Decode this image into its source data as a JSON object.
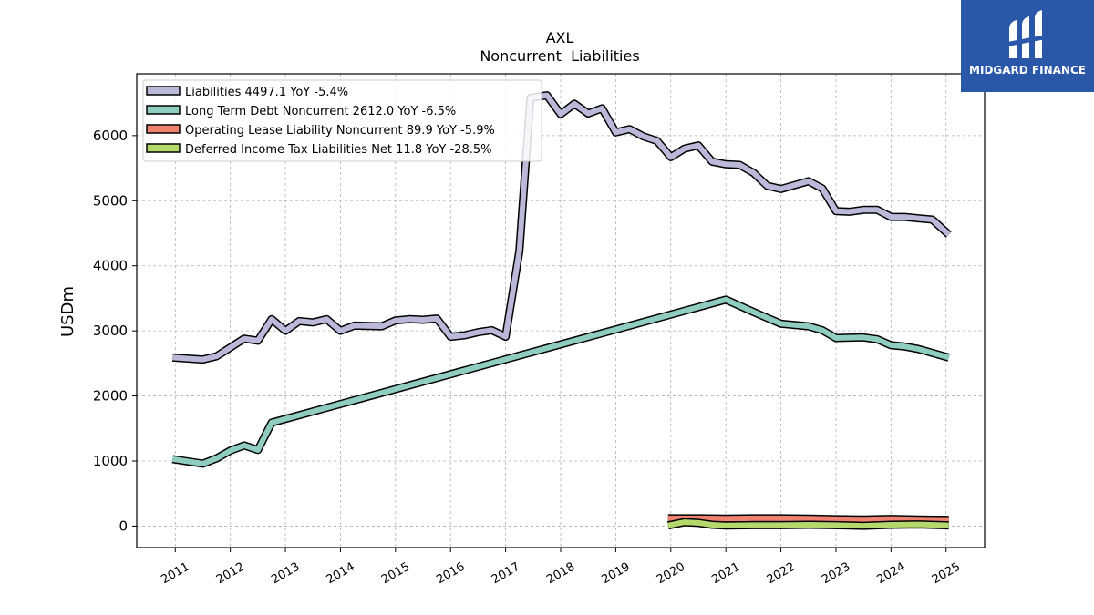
{
  "brand": {
    "name": "MIDGARD FINANCE",
    "color": "#2b57a8",
    "icon": "midgard-logo-icon"
  },
  "chart_data": {
    "type": "line",
    "title": "AXL",
    "subtitle": "Noncurrent  Liabilities",
    "xlabel": "",
    "ylabel": "USDm",
    "xlim": [
      2010.3,
      2025.7
    ],
    "ylim": [
      -330,
      6950
    ],
    "yticks": [
      0,
      1000,
      2000,
      3000,
      4000,
      5000,
      6000
    ],
    "xticks": [
      2011,
      2012,
      2013,
      2014,
      2015,
      2016,
      2017,
      2018,
      2019,
      2020,
      2021,
      2022,
      2023,
      2024,
      2025
    ],
    "xtick_labels": [
      "2011",
      "2012",
      "2013",
      "2014",
      "2015",
      "2016",
      "2017",
      "2018",
      "2019",
      "2020",
      "2021",
      "2022",
      "2023",
      "2024",
      "2025"
    ],
    "grid": true,
    "legend_position": "top-left",
    "series": [
      {
        "name": "Liabilities  4497.1 YoY -5.4%",
        "color": "#bcb8d9",
        "points": [
          [
            2010.95,
            2590
          ],
          [
            2011.5,
            2560
          ],
          [
            2011.75,
            2610
          ],
          [
            2012.25,
            2880
          ],
          [
            2012.5,
            2850
          ],
          [
            2012.75,
            3180
          ],
          [
            2013.0,
            3000
          ],
          [
            2013.25,
            3150
          ],
          [
            2013.5,
            3130
          ],
          [
            2013.75,
            3180
          ],
          [
            2014.0,
            3000
          ],
          [
            2014.25,
            3080
          ],
          [
            2014.75,
            3070
          ],
          [
            2015.0,
            3160
          ],
          [
            2015.25,
            3180
          ],
          [
            2015.5,
            3170
          ],
          [
            2015.75,
            3190
          ],
          [
            2016.0,
            2910
          ],
          [
            2016.25,
            2930
          ],
          [
            2016.5,
            2980
          ],
          [
            2016.75,
            3010
          ],
          [
            2017.0,
            2910
          ],
          [
            2017.25,
            4230
          ],
          [
            2017.45,
            6580
          ],
          [
            2017.75,
            6620
          ],
          [
            2018.0,
            6330
          ],
          [
            2018.25,
            6490
          ],
          [
            2018.5,
            6340
          ],
          [
            2018.75,
            6420
          ],
          [
            2019.0,
            6050
          ],
          [
            2019.25,
            6100
          ],
          [
            2019.5,
            5990
          ],
          [
            2019.75,
            5920
          ],
          [
            2020.0,
            5670
          ],
          [
            2020.25,
            5800
          ],
          [
            2020.5,
            5850
          ],
          [
            2020.75,
            5600
          ],
          [
            2021.0,
            5560
          ],
          [
            2021.25,
            5550
          ],
          [
            2021.5,
            5430
          ],
          [
            2021.75,
            5230
          ],
          [
            2022.0,
            5180
          ],
          [
            2022.5,
            5300
          ],
          [
            2022.75,
            5190
          ],
          [
            2023.0,
            4840
          ],
          [
            2023.25,
            4830
          ],
          [
            2023.5,
            4860
          ],
          [
            2023.75,
            4860
          ],
          [
            2024.0,
            4750
          ],
          [
            2024.25,
            4750
          ],
          [
            2024.5,
            4730
          ],
          [
            2024.75,
            4710
          ],
          [
            2025.05,
            4480
          ]
        ]
      },
      {
        "name": "Long Term Debt Noncurrent  2612.0 YoY -6.5%",
        "color": "#8ecdbf",
        "points": [
          [
            2010.95,
            1030
          ],
          [
            2011.5,
            960
          ],
          [
            2011.75,
            1040
          ],
          [
            2012.0,
            1160
          ],
          [
            2012.25,
            1240
          ],
          [
            2012.5,
            1170
          ],
          [
            2012.75,
            1590
          ],
          [
            2021.0,
            3480
          ],
          [
            2021.5,
            3290
          ],
          [
            2021.75,
            3200
          ],
          [
            2022.0,
            3110
          ],
          [
            2022.5,
            3070
          ],
          [
            2022.75,
            3010
          ],
          [
            2023.0,
            2890
          ],
          [
            2023.5,
            2900
          ],
          [
            2023.75,
            2870
          ],
          [
            2024.0,
            2780
          ],
          [
            2024.25,
            2760
          ],
          [
            2024.5,
            2720
          ],
          [
            2025.05,
            2590
          ]
        ]
      },
      {
        "name": "Operating Lease Liability Noncurrent  89.9 YoY -5.9%",
        "color": "#f08070",
        "points": [
          [
            2019.95,
            120
          ],
          [
            2020.5,
            120
          ],
          [
            2021.0,
            115
          ],
          [
            2021.5,
            120
          ],
          [
            2022.0,
            120
          ],
          [
            2022.5,
            115
          ],
          [
            2023.0,
            105
          ],
          [
            2023.5,
            100
          ],
          [
            2024.0,
            110
          ],
          [
            2024.5,
            100
          ],
          [
            2025.05,
            95
          ]
        ]
      },
      {
        "name": "Deferred Income Tax Liabilities Net  11.8 YoY -28.5%",
        "color": "#b5d86d",
        "points": [
          [
            2019.95,
            10
          ],
          [
            2020.25,
            60
          ],
          [
            2020.5,
            50
          ],
          [
            2020.75,
            20
          ],
          [
            2021.0,
            10
          ],
          [
            2021.5,
            15
          ],
          [
            2022.0,
            15
          ],
          [
            2022.5,
            20
          ],
          [
            2023.0,
            15
          ],
          [
            2023.5,
            5
          ],
          [
            2024.0,
            20
          ],
          [
            2024.5,
            25
          ],
          [
            2025.05,
            12
          ]
        ]
      }
    ]
  }
}
